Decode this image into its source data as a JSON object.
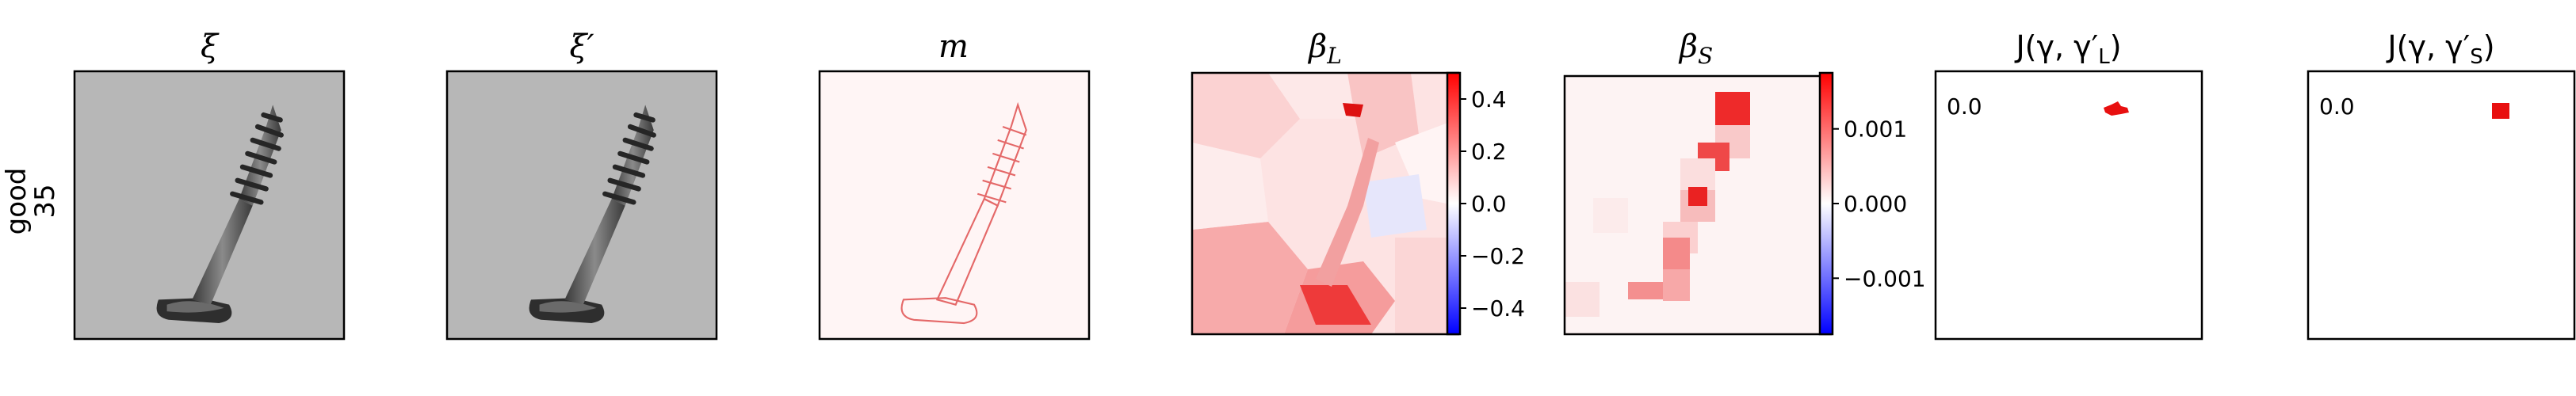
{
  "row_label": {
    "line1": "good",
    "line2": "35"
  },
  "panels": [
    {
      "id": "xi",
      "title": "ξ"
    },
    {
      "id": "xi_prime",
      "title": "ξ′"
    },
    {
      "id": "m",
      "title": "m"
    },
    {
      "id": "beta_L",
      "title_main": "β",
      "title_sub": "L"
    },
    {
      "id": "beta_S",
      "title_main": "β",
      "title_sub": "S"
    },
    {
      "id": "J_L",
      "title_pre": "J(γ, γ′",
      "title_sub": "L",
      "title_post": ")",
      "value_text": "0.0"
    },
    {
      "id": "J_S",
      "title_pre": "J(γ, γ′",
      "title_sub": "S",
      "title_post": ")",
      "value_text": "0.0"
    }
  ],
  "colorbars": {
    "beta_L": {
      "min": -0.5,
      "max": 0.5,
      "ticks": [
        0.4,
        0.2,
        0.0,
        -0.2,
        -0.4
      ],
      "tick_labels": [
        "0.4",
        "0.2",
        "0.0",
        "−0.2",
        "−0.4"
      ]
    },
    "beta_S": {
      "min": -0.00175,
      "max": 0.00175,
      "ticks": [
        0.001,
        0.0,
        -0.001
      ],
      "tick_labels": [
        "0.001",
        "0.000",
        "−0.001"
      ]
    }
  },
  "colors": {
    "cmap_neg": "#0000ff",
    "cmap_mid": "#ffffff",
    "cmap_pos": "#ff0000",
    "image_bg": "#b7b7b7",
    "screw": "#5a5a5a",
    "screw_dark": "#2e2e2e"
  }
}
